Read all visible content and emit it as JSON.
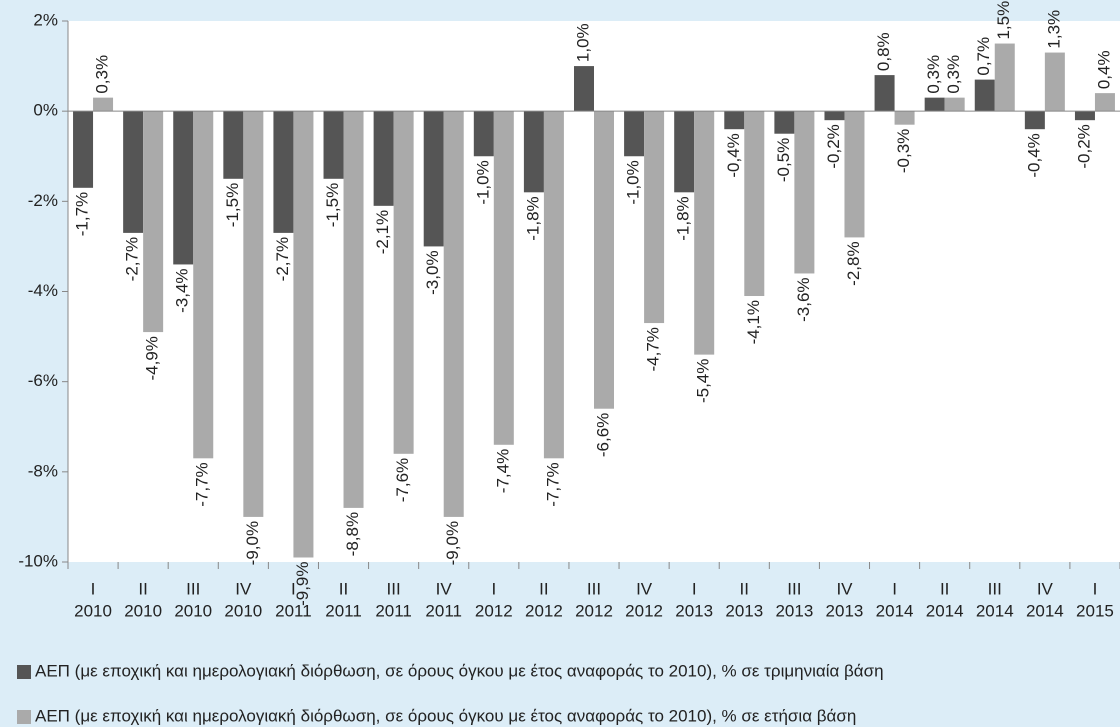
{
  "chart_data": {
    "type": "bar",
    "categories": [
      [
        "I",
        "2010"
      ],
      [
        "II",
        "2010"
      ],
      [
        "III",
        "2010"
      ],
      [
        "IV",
        "2010"
      ],
      [
        "I",
        "2011"
      ],
      [
        "II",
        "2011"
      ],
      [
        "III",
        "2011"
      ],
      [
        "IV",
        "2011"
      ],
      [
        "I",
        "2012"
      ],
      [
        "II",
        "2012"
      ],
      [
        "III",
        "2012"
      ],
      [
        "IV",
        "2012"
      ],
      [
        "I",
        "2013"
      ],
      [
        "II",
        "2013"
      ],
      [
        "III",
        "2013"
      ],
      [
        "IV",
        "2013"
      ],
      [
        "I",
        "2014"
      ],
      [
        "II",
        "2014"
      ],
      [
        "III",
        "2014"
      ],
      [
        "IV",
        "2014"
      ],
      [
        "I",
        "2015"
      ]
    ],
    "series": [
      {
        "name": "ΑΕΠ (με εποχική και ημερολογιακή διόρθωση, σε όρους όγκου με έτος αναφοράς το 2010), % σε τριμηνιαία βάση",
        "color": "#555555",
        "values": [
          -1.7,
          -2.7,
          -3.4,
          -1.5,
          -2.7,
          -1.5,
          -2.1,
          -3.0,
          -1.0,
          -1.8,
          1.0,
          -1.0,
          -1.8,
          -0.4,
          -0.5,
          -0.2,
          0.8,
          0.3,
          0.7,
          -0.4,
          -0.2
        ],
        "value_labels": [
          "-1,7%",
          "-2,7%",
          "-3,4%",
          "-1,5%",
          "-2,7%",
          "-1,5%",
          "-2,1%",
          "-3,0%",
          "-1,0%",
          "-1,8%",
          "1,0%",
          "-1,0%",
          "-1,8%",
          "-0,4%",
          "-0,5%",
          "-0,2%",
          "0,8%",
          "0,3%",
          "0,7%",
          "-0,4%",
          "-0,2%"
        ]
      },
      {
        "name": "ΑΕΠ (με εποχική και ημερολογιακή διόρθωση, σε όρους όγκου με έτος αναφοράς το 2010), % σε ετήσια βάση",
        "color": "#aaaaaa",
        "values": [
          0.3,
          -4.9,
          -7.7,
          -9.0,
          -9.9,
          -8.8,
          -7.6,
          -9.0,
          -7.4,
          -7.7,
          -6.6,
          -4.7,
          -5.4,
          -4.1,
          -3.6,
          -2.8,
          -0.3,
          0.3,
          1.5,
          1.3,
          0.4
        ],
        "value_labels": [
          "0,3%",
          "-4,9%",
          "-7,7%",
          "-9,0%",
          "-9,9%",
          "-8,8%",
          "-7,6%",
          "-9,0%",
          "-7,4%",
          "-7,7%",
          "-6,6%",
          "-4,7%",
          "-5,4%",
          "-4,1%",
          "-3,6%",
          "-2,8%",
          "-0,3%",
          "0,3%",
          "1,5%",
          "1,3%",
          "0,4%"
        ]
      }
    ],
    "ylim": [
      -10,
      2
    ],
    "yticks": [
      {
        "value": 2,
        "label": "2%"
      },
      {
        "value": 0,
        "label": "0%"
      },
      {
        "value": -2,
        "label": "-2%"
      },
      {
        "value": -4,
        "label": "-4%"
      },
      {
        "value": -6,
        "label": "-6%"
      },
      {
        "value": -8,
        "label": "-8%"
      },
      {
        "value": -10,
        "label": "-10%"
      }
    ]
  }
}
